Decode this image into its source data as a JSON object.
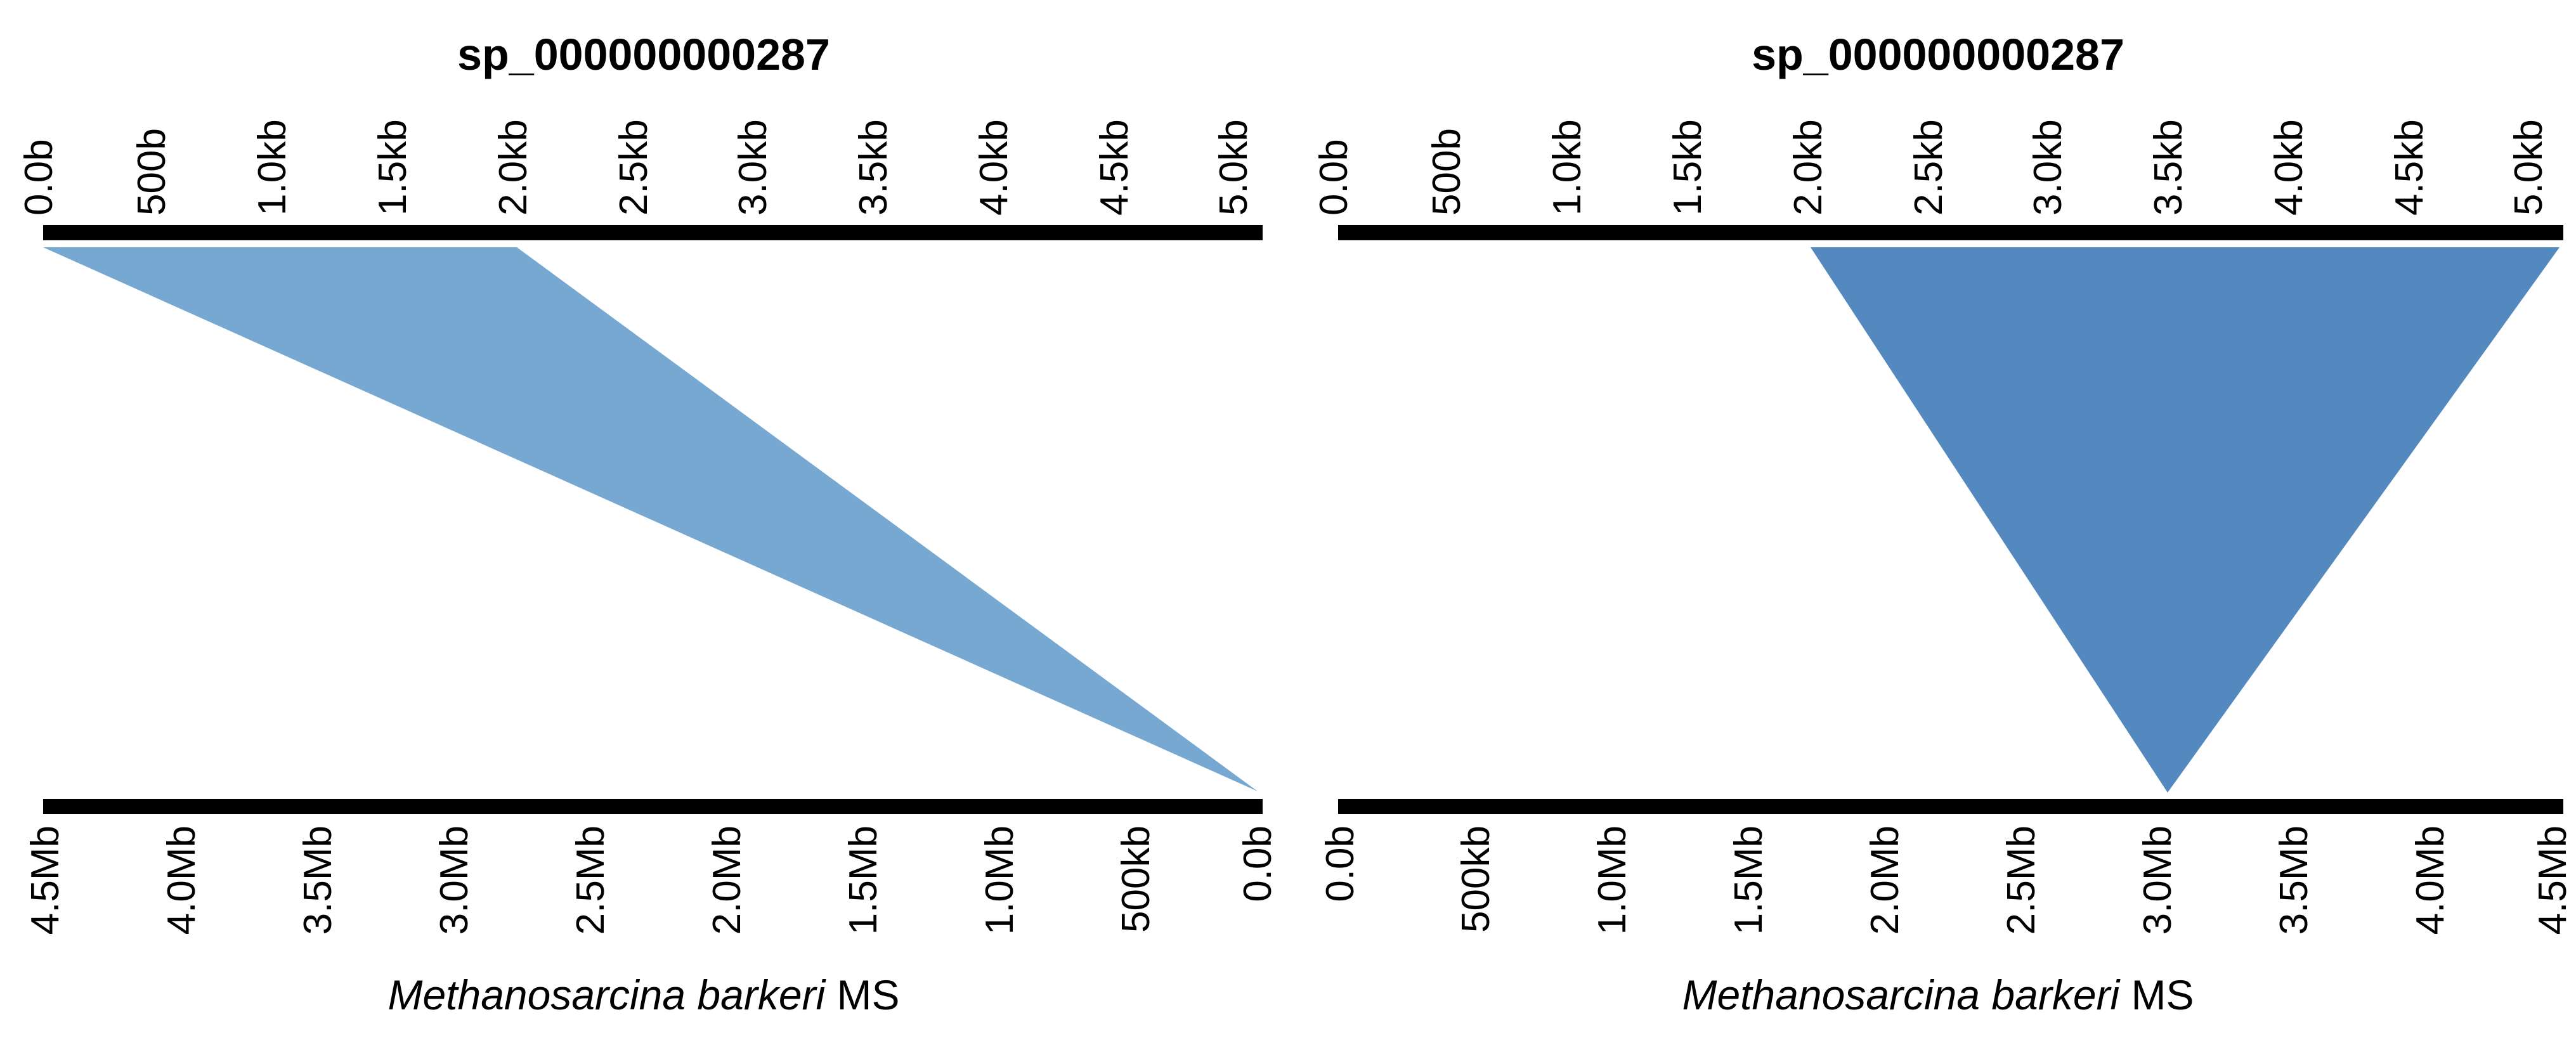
{
  "colors": {
    "track": "#000000",
    "background": "#ffffff",
    "panel_1_band": "#76a8d1",
    "panel_2_band": "#5389bf"
  },
  "panels": [
    {
      "title": "sp_000000000287",
      "top_ticks": [
        "0.0b",
        "500b",
        "1.0kb",
        "1.5kb",
        "2.0kb",
        "2.5kb",
        "3.0kb",
        "3.5kb",
        "4.0kb",
        "4.5kb",
        "5.0kb"
      ],
      "bottom_ticks": [
        "4.5Mb",
        "4.0Mb",
        "3.5Mb",
        "3.0Mb",
        "2.5Mb",
        "2.0Mb",
        "1.5Mb",
        "1.0Mb",
        "500kb",
        "0.0b"
      ],
      "genome_name_italic": "Methanosarcina barkeri",
      "genome_name_suffix": " MS",
      "band_color": "#76a8d1"
    },
    {
      "title": "sp_000000000287",
      "top_ticks": [
        "0.0b",
        "500b",
        "1.0kb",
        "1.5kb",
        "2.0kb",
        "2.5kb",
        "3.0kb",
        "3.5kb",
        "4.0kb",
        "4.5kb",
        "5.0kb"
      ],
      "bottom_ticks": [
        "0.0b",
        "500kb",
        "1.0Mb",
        "1.5Mb",
        "2.0Mb",
        "2.5Mb",
        "3.0Mb",
        "3.5Mb",
        "4.0Mb",
        "4.5Mb"
      ],
      "genome_name_italic": "Methanosarcina barkeri",
      "genome_name_suffix": " MS",
      "band_color": "#5389bf"
    }
  ]
}
